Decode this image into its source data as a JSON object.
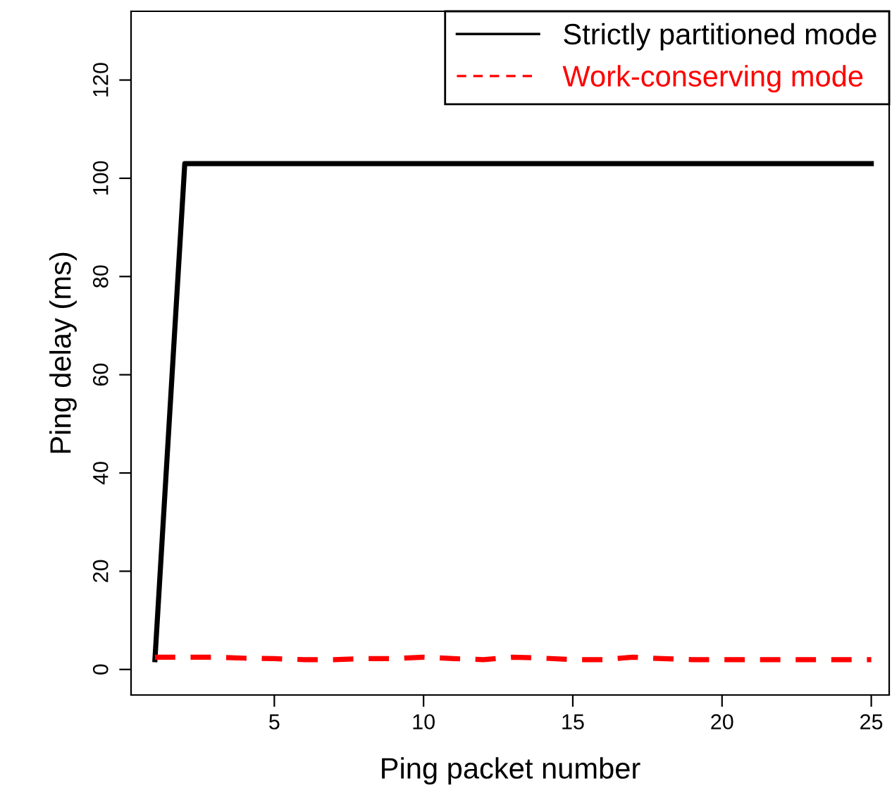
{
  "chart_data": {
    "type": "line",
    "xlabel": "Ping packet number",
    "ylabel": "Ping delay (ms)",
    "x": [
      1,
      2,
      3,
      4,
      5,
      6,
      7,
      8,
      9,
      10,
      11,
      12,
      13,
      14,
      15,
      16,
      17,
      18,
      19,
      20,
      21,
      22,
      23,
      24,
      25
    ],
    "series": [
      {
        "name": "Strictly partitioned mode",
        "color": "#000000",
        "line_style": "solid",
        "values": [
          2,
          103,
          103,
          103,
          103,
          103,
          103,
          103,
          103,
          103,
          103,
          103,
          103,
          103,
          103,
          103,
          103,
          103,
          103,
          103,
          103,
          103,
          103,
          103,
          103
        ]
      },
      {
        "name": "Work-conserving mode",
        "color": "#ff0000",
        "line_style": "dashed",
        "values": [
          2.5,
          2.5,
          2.5,
          2.3,
          2.2,
          2,
          2,
          2.2,
          2.2,
          2.5,
          2.2,
          2,
          2.5,
          2.3,
          2,
          2,
          2.5,
          2.2,
          2,
          2,
          2,
          2,
          2,
          2,
          2
        ]
      }
    ],
    "xlim": [
      0.2,
      25.6
    ],
    "ylim": [
      -5.2,
      134
    ],
    "xticks": [
      5,
      10,
      15,
      20,
      25
    ],
    "yticks": [
      0,
      20,
      40,
      60,
      80,
      100,
      120
    ],
    "grid": false,
    "legend": "top right",
    "marker": "none"
  }
}
